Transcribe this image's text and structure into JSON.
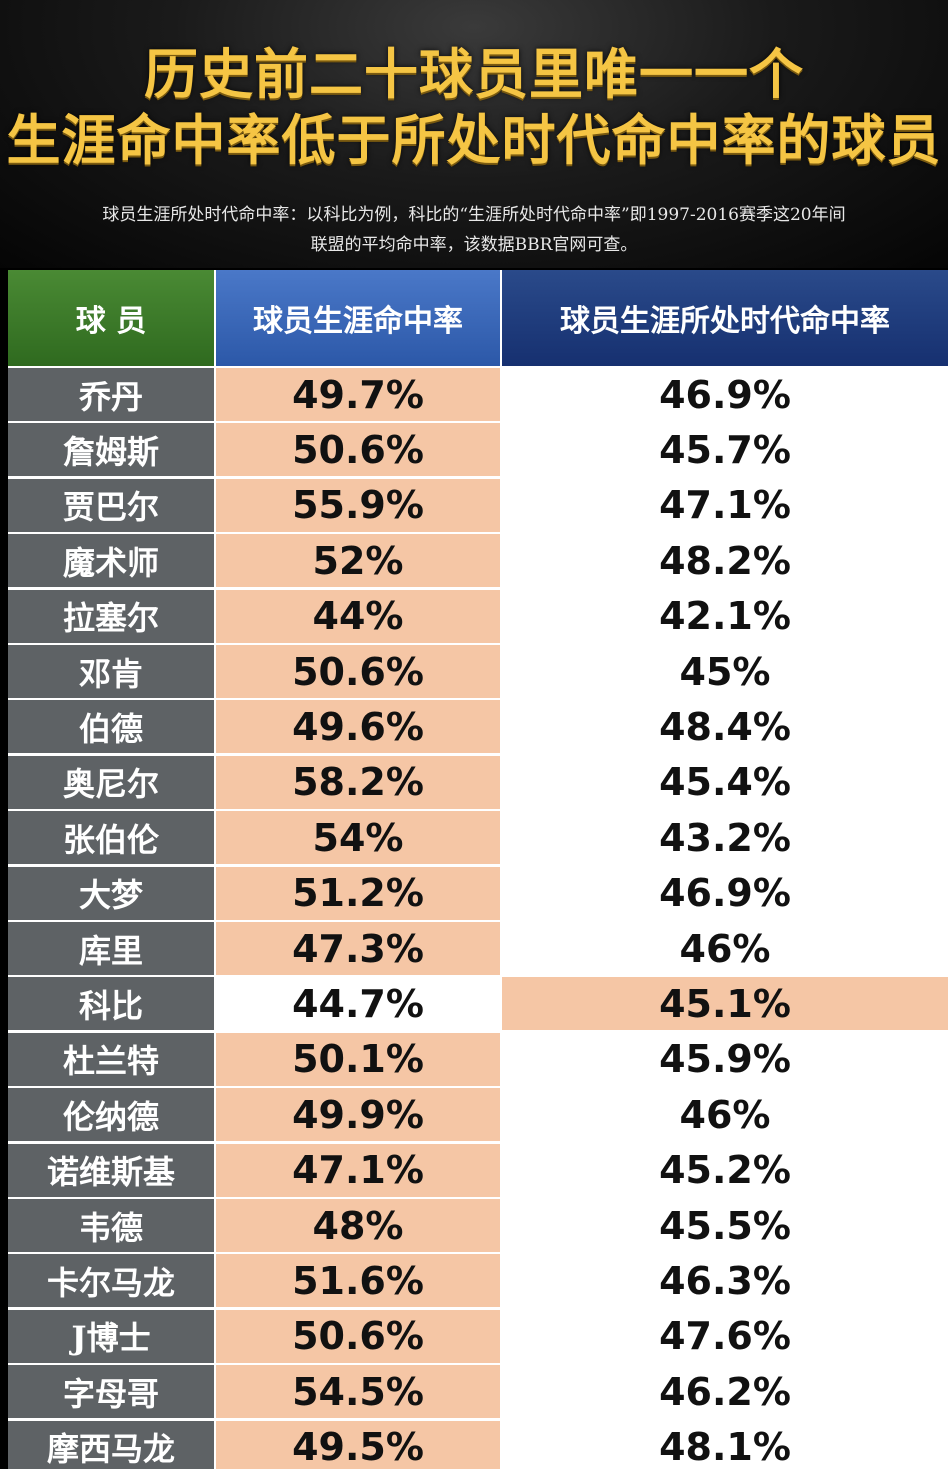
{
  "title": {
    "line1": "历史前二十球员里唯一一个",
    "line2": "生涯命中率低于所处时代命中率的球员"
  },
  "note": {
    "line1": "球员生涯所处时代命中率：以科比为例，科比的“生涯所处时代命中率”即1997-2016赛季这20年间",
    "line2": "联盟的平均命中率，该数据BBR官网可查。"
  },
  "table": {
    "headers": [
      "球 员",
      "球员生涯命中率",
      "球员生涯所处时代命中率"
    ],
    "rows": [
      {
        "name": "乔丹",
        "career": "49.7%",
        "era": "46.9%",
        "highlight": "career"
      },
      {
        "name": "詹姆斯",
        "career": "50.6%",
        "era": "45.7%",
        "highlight": "career"
      },
      {
        "name": "贾巴尔",
        "career": "55.9%",
        "era": "47.1%",
        "highlight": "career"
      },
      {
        "name": "魔术师",
        "career": "52%",
        "era": "48.2%",
        "highlight": "career"
      },
      {
        "name": "拉塞尔",
        "career": "44%",
        "era": "42.1%",
        "highlight": "career"
      },
      {
        "name": "邓肯",
        "career": "50.6%",
        "era": "45%",
        "highlight": "career"
      },
      {
        "name": "伯德",
        "career": "49.6%",
        "era": "48.4%",
        "highlight": "career"
      },
      {
        "name": "奥尼尔",
        "career": "58.2%",
        "era": "45.4%",
        "highlight": "career"
      },
      {
        "name": "张伯伦",
        "career": "54%",
        "era": "43.2%",
        "highlight": "career"
      },
      {
        "name": "大梦",
        "career": "51.2%",
        "era": "46.9%",
        "highlight": "career"
      },
      {
        "name": "库里",
        "career": "47.3%",
        "era": "46%",
        "highlight": "career"
      },
      {
        "name": "科比",
        "career": "44.7%",
        "era": "45.1%",
        "highlight": "era"
      },
      {
        "name": "杜兰特",
        "career": "50.1%",
        "era": "45.9%",
        "highlight": "career"
      },
      {
        "name": "伦纳德",
        "career": "49.9%",
        "era": "46%",
        "highlight": "career"
      },
      {
        "name": "诺维斯基",
        "career": "47.1%",
        "era": "45.2%",
        "highlight": "career"
      },
      {
        "name": "韦德",
        "career": "48%",
        "era": "45.5%",
        "highlight": "career"
      },
      {
        "name": "卡尔马龙",
        "career": "51.6%",
        "era": "46.3%",
        "highlight": "career"
      },
      {
        "name": "J博士",
        "career": "50.6%",
        "era": "47.6%",
        "highlight": "career"
      },
      {
        "name": "字母哥",
        "career": "54.5%",
        "era": "46.2%",
        "highlight": "career"
      },
      {
        "name": "摩西马龙",
        "career": "49.5%",
        "era": "48.1%",
        "highlight": "career"
      }
    ]
  },
  "colors": {
    "title": "#f5c544",
    "highlight": "#f5c6a5",
    "name_column": "#5e6265",
    "header_player": "#3a7a2a",
    "header_career": "#3a68b8",
    "header_era": "#1f3f80"
  }
}
